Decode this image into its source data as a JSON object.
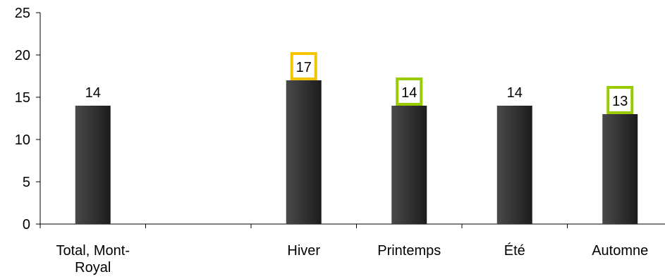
{
  "chart_data": {
    "type": "bar",
    "categories": [
      [
        "Total, Mont-",
        "Royal"
      ],
      [
        ""
      ],
      [
        "Hiver"
      ],
      [
        "Printemps"
      ],
      [
        "Été"
      ],
      [
        "Automne"
      ]
    ],
    "values": [
      14,
      null,
      17,
      14,
      14,
      13
    ],
    "labels": [
      "14",
      "",
      "17",
      "14",
      "14",
      "13"
    ],
    "label_box_colors": [
      null,
      null,
      "#f5c400",
      "#99cc00",
      null,
      "#99cc00"
    ],
    "ylim": [
      0,
      25
    ],
    "yticks": [
      0,
      5,
      10,
      15,
      20,
      25
    ],
    "grid": false,
    "bar_color": "#333333"
  }
}
